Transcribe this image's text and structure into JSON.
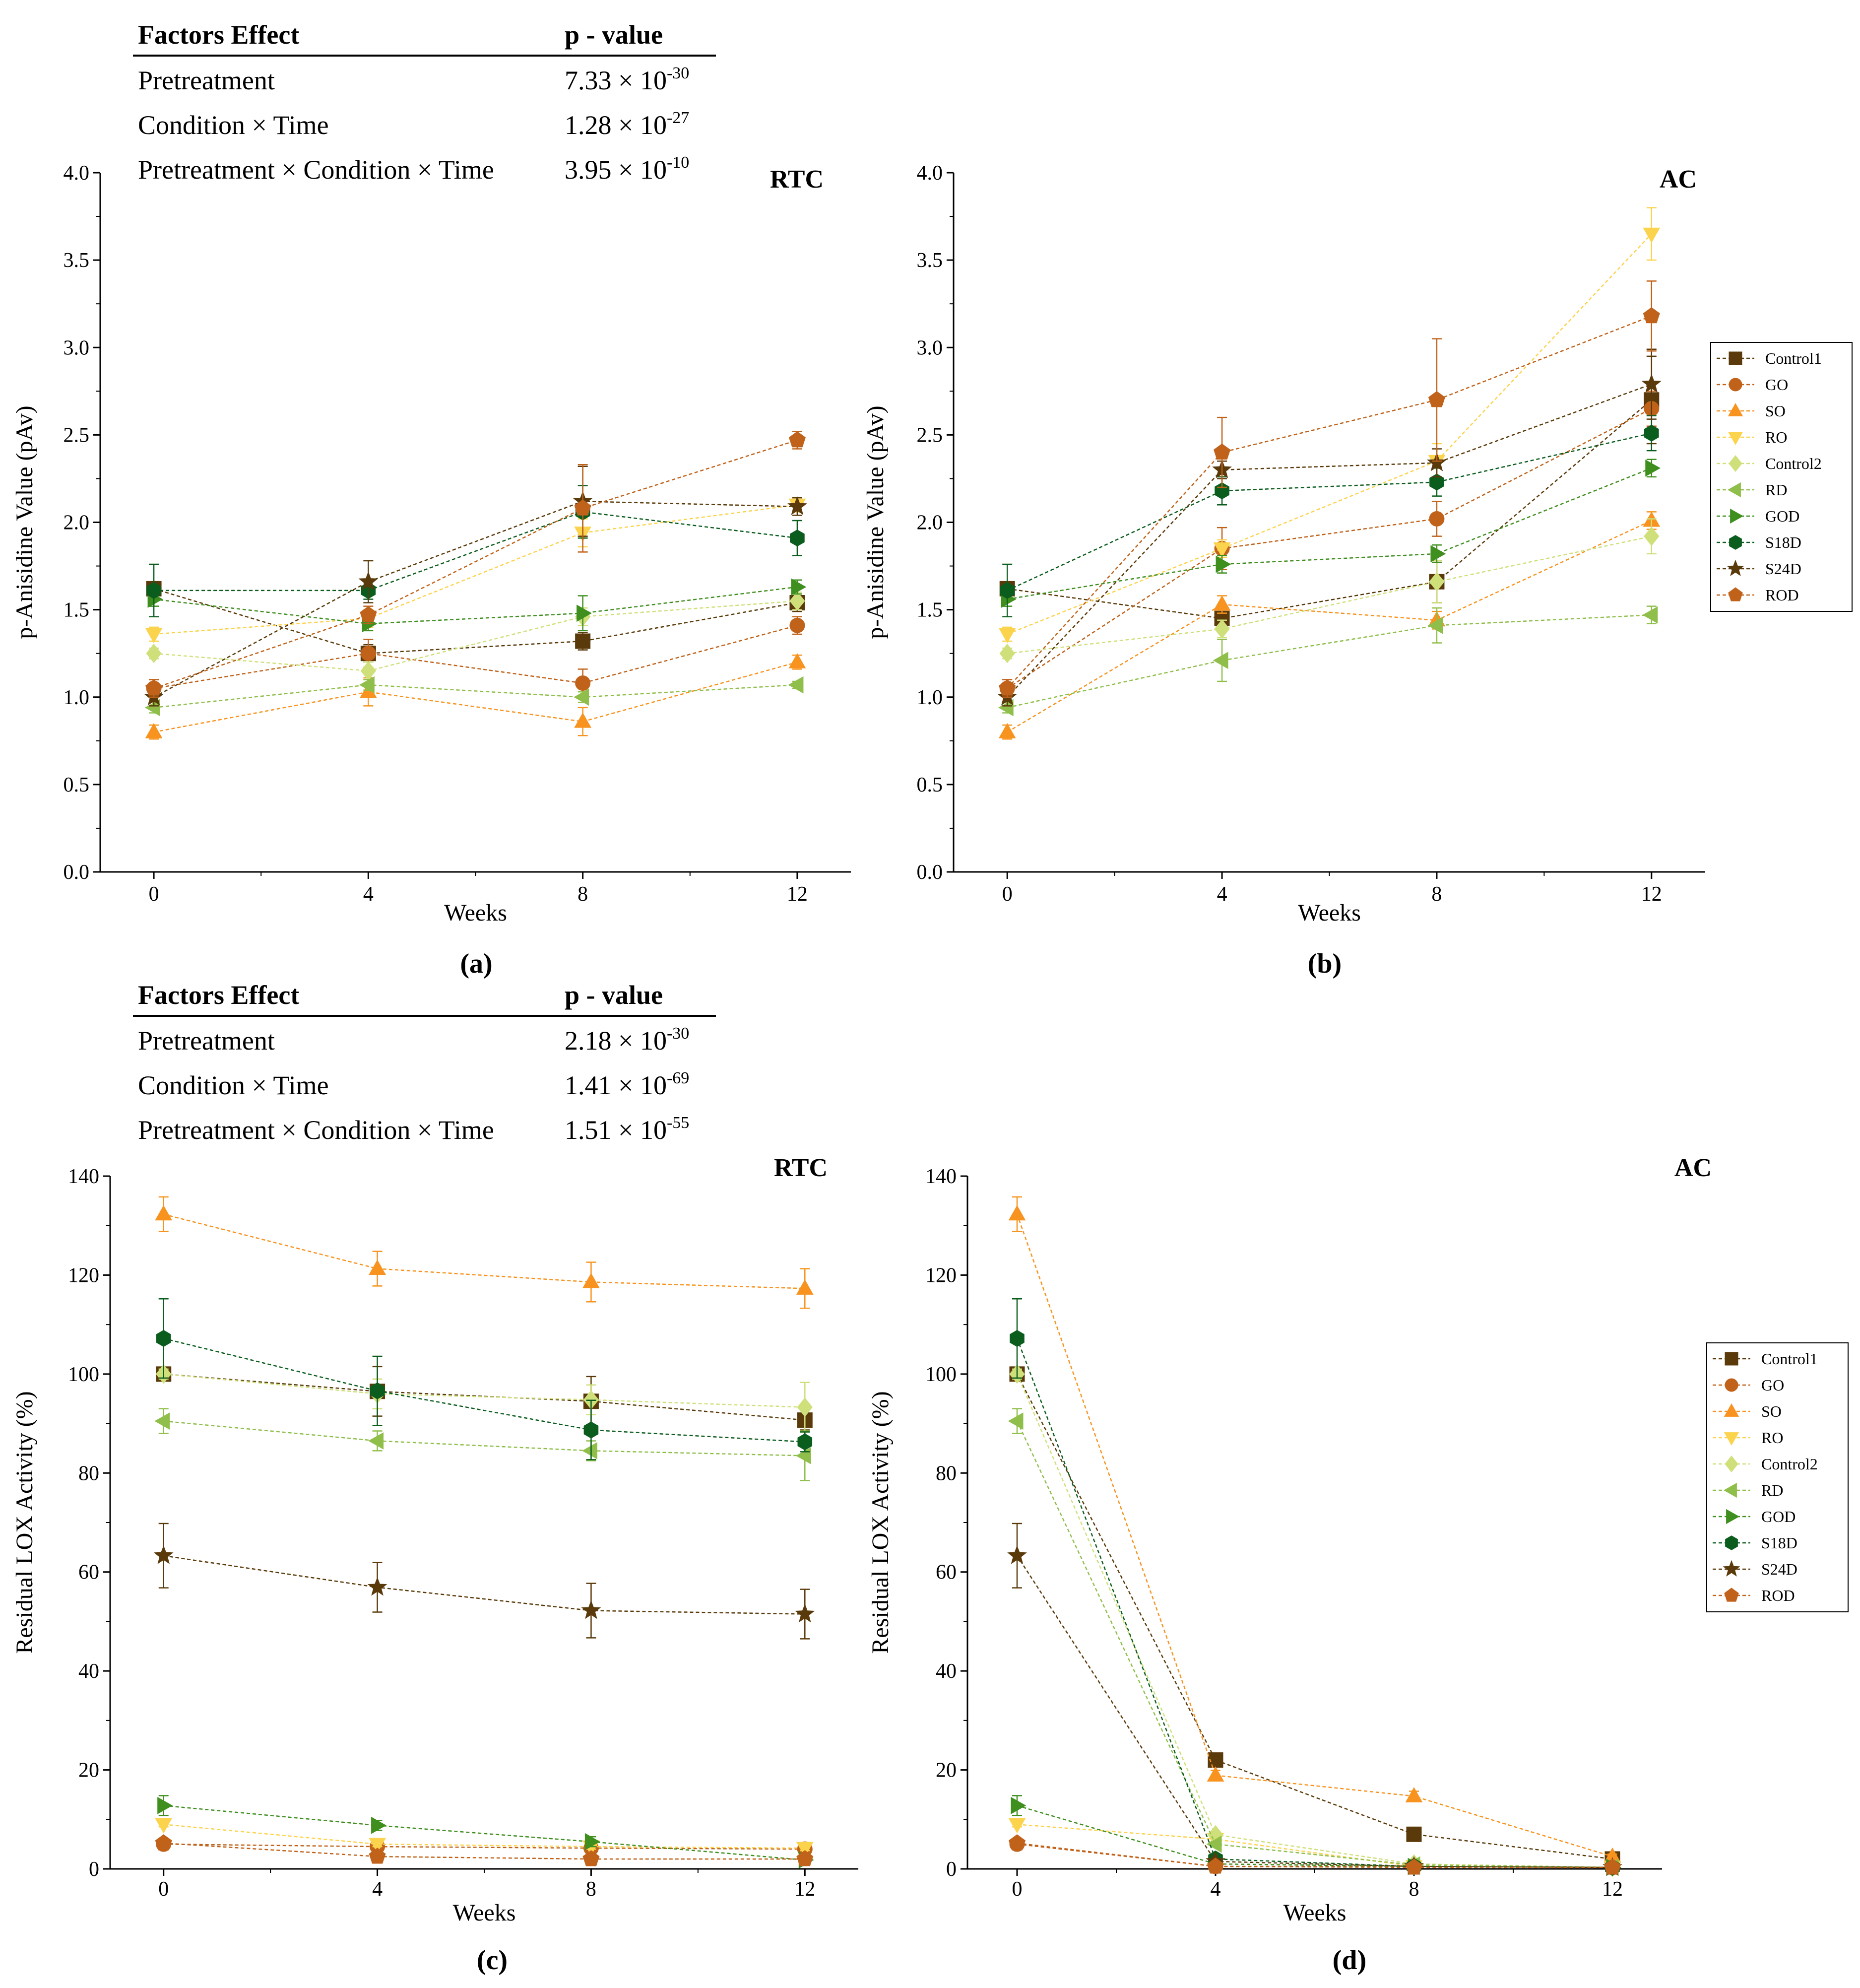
{
  "figure": {
    "series_names": [
      "Control1",
      "GO",
      "SO",
      "RO",
      "Control2",
      "RD",
      "GOD",
      "S18D",
      "S24D",
      "ROD"
    ],
    "series_styles": {
      "Control1": {
        "color": "#5a3a0a",
        "marker": "square"
      },
      "GO": {
        "color": "#c0621a",
        "marker": "circle"
      },
      "SO": {
        "color": "#f7931e",
        "marker": "triangle-up"
      },
      "RO": {
        "color": "#fcd34d",
        "marker": "triangle-down"
      },
      "Control2": {
        "color": "#cfe07a",
        "marker": "diamond"
      },
      "RD": {
        "color": "#8fbf4a",
        "marker": "triangle-left"
      },
      "GOD": {
        "color": "#3f8f1f",
        "marker": "triangle-right"
      },
      "S18D": {
        "color": "#0b5d1e",
        "marker": "hexagon"
      },
      "S24D": {
        "color": "#5a3a0a",
        "marker": "star"
      },
      "ROD": {
        "color": "#c0621a",
        "marker": "pentagon"
      }
    },
    "stat_tables": [
      {
        "header": [
          "Factors Effect",
          "p - value"
        ],
        "rows": [
          {
            "factor": "Pretreatment",
            "mantissa": "7.33 ×",
            "base": "10",
            "exp": "-30"
          },
          {
            "factor": "Condition × Time",
            "mantissa": "1.28 ×",
            "base": "10",
            "exp": "-27"
          },
          {
            "factor": "Pretreatment × Condition × Time",
            "mantissa": "3.95 ×",
            "base": "10",
            "exp": "-10"
          }
        ]
      },
      {
        "header": [
          "Factors Effect",
          "p - value"
        ],
        "rows": [
          {
            "factor": "Pretreatment",
            "mantissa": "2.18 ×",
            "base": "10",
            "exp": "-30"
          },
          {
            "factor": "Condition × Time",
            "mantissa": "1.41 ×",
            "base": "10",
            "exp": "-69"
          },
          {
            "factor": "Pretreatment × Condition × Time",
            "mantissa": "1.51 ×",
            "base": "10",
            "exp": "-55"
          }
        ]
      }
    ]
  },
  "chart_data": [
    {
      "id": "a",
      "type": "line",
      "caption": "(a)",
      "panel_label": "RTC",
      "xlabel": "Weeks",
      "ylabel": "p-Anisidine Value (pAv)",
      "x": [
        0,
        4,
        8,
        12
      ],
      "xlim": [
        -1,
        13
      ],
      "ylim": [
        0,
        4
      ],
      "yticks": [
        0,
        0.5,
        1,
        1.5,
        2,
        2.5,
        3,
        3.5,
        4
      ],
      "decimals": 1,
      "legend": false,
      "series": [
        {
          "name": "Control1",
          "values": [
            1.62,
            1.25,
            1.32,
            1.54
          ],
          "err": [
            0.04,
            0.05,
            0.05,
            0.05
          ]
        },
        {
          "name": "GO",
          "values": [
            1.05,
            1.25,
            1.08,
            1.41
          ],
          "err": [
            0.05,
            0.08,
            0.08,
            0.05
          ]
        },
        {
          "name": "SO",
          "values": [
            0.8,
            1.03,
            0.86,
            1.2
          ],
          "err": [
            0.04,
            0.08,
            0.08,
            0.04
          ]
        },
        {
          "name": "RO",
          "values": [
            1.36,
            1.45,
            1.94,
            2.1
          ],
          "err": [
            0.04,
            0.05,
            0.08,
            0.04
          ]
        },
        {
          "name": "Control2",
          "values": [
            1.25,
            1.15,
            1.46,
            1.55
          ],
          "err": [
            0.03,
            0.05,
            0.05,
            0.05
          ]
        },
        {
          "name": "RD",
          "values": [
            0.94,
            1.07,
            1.0,
            1.07
          ],
          "err": [
            0.03,
            0.03,
            0.03,
            0.02
          ]
        },
        {
          "name": "GOD",
          "values": [
            1.56,
            1.42,
            1.48,
            1.63
          ],
          "err": [
            0.04,
            0.04,
            0.1,
            0.04
          ]
        },
        {
          "name": "S18D",
          "values": [
            1.61,
            1.61,
            2.06,
            1.91
          ],
          "err": [
            0.15,
            0.05,
            0.15,
            0.1
          ]
        },
        {
          "name": "S24D",
          "values": [
            1.0,
            1.66,
            2.12,
            2.09
          ],
          "err": [
            0.05,
            0.12,
            0.2,
            0.05
          ]
        },
        {
          "name": "ROD",
          "values": [
            1.05,
            1.47,
            2.08,
            2.47
          ],
          "err": [
            0.05,
            0.05,
            0.25,
            0.05
          ]
        }
      ]
    },
    {
      "id": "b",
      "type": "line",
      "caption": "(b)",
      "panel_label": "AC",
      "xlabel": "Weeks",
      "ylabel": "p-Anisidine Value (pAv)",
      "x": [
        0,
        4,
        8,
        12
      ],
      "xlim": [
        -1,
        13
      ],
      "ylim": [
        0,
        4
      ],
      "yticks": [
        0,
        0.5,
        1,
        1.5,
        2,
        2.5,
        3,
        3.5,
        4
      ],
      "decimals": 1,
      "legend": true,
      "series": [
        {
          "name": "Control1",
          "values": [
            1.62,
            1.45,
            1.66,
            2.7
          ],
          "err": [
            0.04,
            0.05,
            0.12,
            0.25
          ]
        },
        {
          "name": "GO",
          "values": [
            1.05,
            1.85,
            2.02,
            2.65
          ],
          "err": [
            0.05,
            0.12,
            0.1,
            0.1
          ]
        },
        {
          "name": "SO",
          "values": [
            0.8,
            1.53,
            1.44,
            2.01
          ],
          "err": [
            0.04,
            0.05,
            0.05,
            0.05
          ]
        },
        {
          "name": "RO",
          "values": [
            1.36,
            1.85,
            2.35,
            3.65
          ],
          "err": [
            0.04,
            0.05,
            0.1,
            0.15
          ]
        },
        {
          "name": "Control2",
          "values": [
            1.25,
            1.39,
            1.66,
            1.92
          ],
          "err": [
            0.03,
            0.05,
            0.12,
            0.1
          ]
        },
        {
          "name": "RD",
          "values": [
            0.94,
            1.21,
            1.41,
            1.47
          ],
          "err": [
            0.03,
            0.12,
            0.1,
            0.05
          ]
        },
        {
          "name": "GOD",
          "values": [
            1.56,
            1.76,
            1.82,
            2.31
          ],
          "err": [
            0.04,
            0.05,
            0.05,
            0.05
          ]
        },
        {
          "name": "S18D",
          "values": [
            1.61,
            2.18,
            2.23,
            2.51
          ],
          "err": [
            0.15,
            0.08,
            0.08,
            0.1
          ]
        },
        {
          "name": "S24D",
          "values": [
            1.0,
            2.3,
            2.34,
            2.79
          ],
          "err": [
            0.05,
            0.05,
            0.08,
            0.2
          ]
        },
        {
          "name": "ROD",
          "values": [
            1.05,
            2.4,
            2.7,
            3.18
          ],
          "err": [
            0.05,
            0.2,
            0.35,
            0.2
          ]
        }
      ]
    },
    {
      "id": "c",
      "type": "line",
      "caption": "(c)",
      "panel_label": "RTC",
      "xlabel": "Weeks",
      "ylabel": "Residual LOX Activity (%)",
      "x": [
        0,
        4,
        8,
        12
      ],
      "xlim": [
        -1,
        13
      ],
      "ylim": [
        0,
        140
      ],
      "yticks": [
        0,
        20,
        40,
        60,
        80,
        100,
        120,
        140
      ],
      "decimals": 0,
      "legend": false,
      "series": [
        {
          "name": "Control1",
          "values": [
            100.0,
            96.5,
            94.5,
            90.7
          ],
          "err": [
            1.0,
            5.0,
            5.0,
            2.0
          ]
        },
        {
          "name": "GO",
          "values": [
            5.0,
            4.5,
            4.2,
            4.0
          ],
          "err": [
            0.5,
            0.5,
            0.5,
            0.5
          ]
        },
        {
          "name": "SO",
          "values": [
            132.3,
            121.3,
            118.6,
            117.3
          ],
          "err": [
            3.5,
            3.5,
            4.0,
            4.0
          ]
        },
        {
          "name": "RO",
          "values": [
            9.0,
            5.0,
            4.5,
            4.2
          ],
          "err": [
            0.5,
            0.5,
            0.5,
            0.5
          ]
        },
        {
          "name": "Control2",
          "values": [
            100.0,
            96.0,
            94.8,
            93.3
          ],
          "err": [
            1.0,
            3.0,
            3.0,
            5.0
          ]
        },
        {
          "name": "RD",
          "values": [
            90.5,
            86.5,
            84.5,
            83.5
          ],
          "err": [
            2.5,
            2.0,
            2.0,
            5.0
          ]
        },
        {
          "name": "GOD",
          "values": [
            12.8,
            8.8,
            5.5,
            1.8
          ],
          "err": [
            2.0,
            1.0,
            1.0,
            0.5
          ]
        },
        {
          "name": "S18D",
          "values": [
            107.2,
            96.6,
            88.7,
            86.3
          ],
          "err": [
            8.0,
            7.0,
            6.0,
            2.0
          ]
        },
        {
          "name": "S24D",
          "values": [
            63.3,
            56.9,
            52.2,
            51.5
          ],
          "err": [
            6.5,
            5.0,
            5.5,
            5.0
          ]
        },
        {
          "name": "ROD",
          "values": [
            5.2,
            2.5,
            2.0,
            2.0
          ],
          "err": [
            0.5,
            0.5,
            0.5,
            0.5
          ]
        }
      ]
    },
    {
      "id": "d",
      "type": "line",
      "caption": "(d)",
      "panel_label": "AC",
      "xlabel": "Weeks",
      "ylabel": "Residual LOX Activity (%)",
      "x": [
        0,
        4,
        8,
        12
      ],
      "xlim": [
        -1,
        13
      ],
      "ylim": [
        0,
        140
      ],
      "yticks": [
        0,
        20,
        40,
        60,
        80,
        100,
        120,
        140
      ],
      "decimals": 0,
      "legend": true,
      "series": [
        {
          "name": "Control1",
          "values": [
            100.0,
            22.0,
            7.0,
            2.0
          ],
          "err": [
            1.0,
            0.8,
            0.8,
            0.4
          ]
        },
        {
          "name": "GO",
          "values": [
            5.0,
            0.5,
            0.5,
            0.3
          ],
          "err": [
            0.5,
            0.3,
            0.3,
            0.2
          ]
        },
        {
          "name": "SO",
          "values": [
            132.3,
            18.9,
            14.7,
            2.5
          ],
          "err": [
            3.5,
            1.0,
            1.0,
            0.5
          ]
        },
        {
          "name": "RO",
          "values": [
            9.0,
            6.0,
            0.5,
            0.3
          ],
          "err": [
            0.5,
            0.5,
            0.3,
            0.2
          ]
        },
        {
          "name": "Control2",
          "values": [
            100.0,
            6.9,
            1.0,
            0.3
          ],
          "err": [
            1.0,
            0.5,
            0.3,
            0.2
          ]
        },
        {
          "name": "RD",
          "values": [
            90.5,
            5.0,
            0.8,
            0.3
          ],
          "err": [
            2.5,
            0.5,
            0.3,
            0.2
          ]
        },
        {
          "name": "GOD",
          "values": [
            12.8,
            1.0,
            0.5,
            0.3
          ],
          "err": [
            2.0,
            0.3,
            0.3,
            0.2
          ]
        },
        {
          "name": "S18D",
          "values": [
            107.2,
            2.0,
            0.5,
            0.3
          ],
          "err": [
            8.0,
            0.5,
            0.3,
            0.2
          ]
        },
        {
          "name": "S24D",
          "values": [
            63.3,
            1.5,
            0.5,
            0.3
          ],
          "err": [
            6.5,
            0.5,
            0.3,
            0.2
          ]
        },
        {
          "name": "ROD",
          "values": [
            5.2,
            0.5,
            0.3,
            0.3
          ],
          "err": [
            0.5,
            0.3,
            0.2,
            0.2
          ]
        }
      ]
    }
  ]
}
